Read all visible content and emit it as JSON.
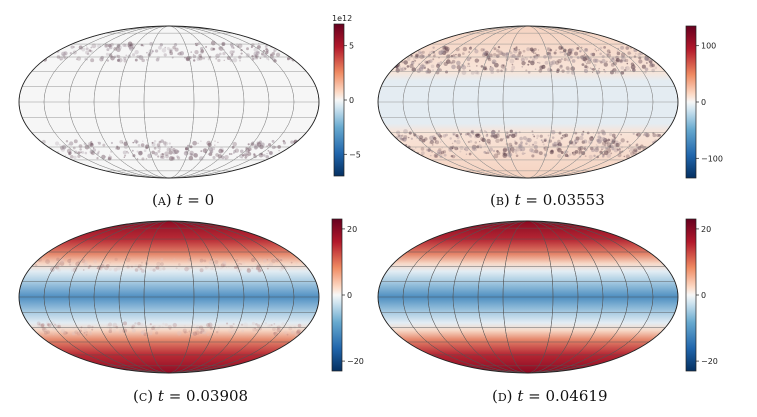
{
  "figure": {
    "panels": [
      {
        "id": "A",
        "caption_label": "(a)",
        "caption_var": "t",
        "caption_eq": " = ",
        "caption_value": "0",
        "colorbar_multiplier": "1e12",
        "colorbar_ticks": [
          "5",
          "0",
          "−5"
        ],
        "colorbar_tick_values": [
          5,
          0,
          -5
        ],
        "colorbar_range": [
          -7,
          7
        ]
      },
      {
        "id": "B",
        "caption_label": "(b)",
        "caption_var": "t",
        "caption_eq": " = ",
        "caption_value": "0.03553",
        "colorbar_multiplier": "",
        "colorbar_ticks": [
          "100",
          "0",
          "−100"
        ],
        "colorbar_tick_values": [
          100,
          0,
          -100
        ],
        "colorbar_range": [
          -135,
          135
        ]
      },
      {
        "id": "C",
        "caption_label": "(c)",
        "caption_var": "t",
        "caption_eq": " = ",
        "caption_value": "0.03908",
        "colorbar_multiplier": "",
        "colorbar_ticks": [
          "20",
          "0",
          "−20"
        ],
        "colorbar_tick_values": [
          20,
          0,
          -20
        ],
        "colorbar_range": [
          -23,
          23
        ]
      },
      {
        "id": "D",
        "caption_label": "(d)",
        "caption_var": "t",
        "caption_eq": " = ",
        "caption_value": "0.04619",
        "colorbar_multiplier": "",
        "colorbar_ticks": [
          "20",
          "0",
          "−20"
        ],
        "colorbar_tick_values": [
          20,
          0,
          -20
        ],
        "colorbar_range": [
          -23,
          23
        ]
      }
    ],
    "colors": {
      "cmap_low": "#053061",
      "cmap_mid": "#f7f7f7",
      "cmap_high": "#67001f"
    }
  }
}
